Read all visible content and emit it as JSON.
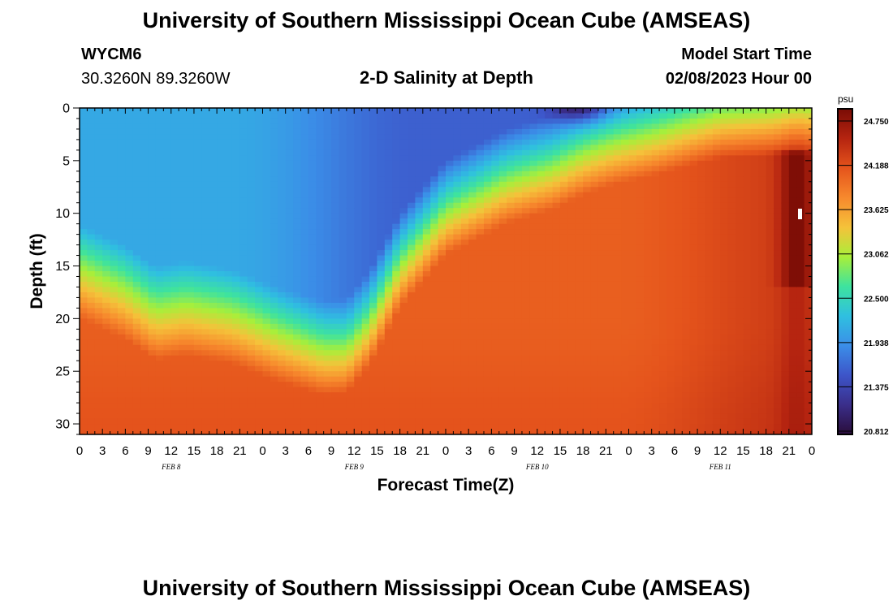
{
  "title": "University of Southern Mississippi Ocean Cube (AMSEAS)",
  "title_repeat": "University of Southern Mississippi Ocean Cube (AMSEAS)",
  "station": {
    "id": "WYCM6",
    "coords": "30.3260N  89.3260W"
  },
  "model_start": {
    "label": "Model Start Time",
    "value": "02/08/2023 Hour 00"
  },
  "chart_data": {
    "type": "heatmap",
    "title": "2-D Salinity at Depth",
    "xlabel": "Forecast Time(Z)",
    "ylabel": "Depth (ft)",
    "xlim_hours": [
      0,
      96
    ],
    "ylim_ft": [
      0,
      31
    ],
    "x_ticks": [
      "0",
      "3",
      "6",
      "9",
      "12",
      "15",
      "18",
      "21",
      "0",
      "3",
      "6",
      "9",
      "12",
      "15",
      "18",
      "21",
      "0",
      "3",
      "6",
      "9",
      "12",
      "15",
      "18",
      "21",
      "0",
      "3",
      "6",
      "9",
      "12",
      "15",
      "18",
      "21",
      "0"
    ],
    "x_tick_hours": [
      0,
      3,
      6,
      9,
      12,
      15,
      18,
      21,
      24,
      27,
      30,
      33,
      36,
      39,
      42,
      45,
      48,
      51,
      54,
      57,
      60,
      63,
      66,
      69,
      72,
      75,
      78,
      81,
      84,
      87,
      90,
      93,
      96
    ],
    "date_labels": [
      {
        "text": "FEB 8",
        "hour": 12
      },
      {
        "text": "FEB 9",
        "hour": 36
      },
      {
        "text": "FEB 10",
        "hour": 60
      },
      {
        "text": "FEB 11",
        "hour": 84
      }
    ],
    "y_ticks": [
      0,
      5,
      10,
      15,
      20,
      25,
      30
    ],
    "y_tick_labels": [
      "0",
      "5",
      "10",
      "15",
      "20",
      "25",
      "30"
    ],
    "colorbar": {
      "unit": "psu",
      "min": 20.812,
      "max": 24.75,
      "labels": [
        "24.750",
        "24.188",
        "23.625",
        "23.062",
        "22.500",
        "21.938",
        "21.375",
        "20.812"
      ],
      "colors": [
        "#2a0d3a",
        "#3a2e8a",
        "#3d55c9",
        "#3b8ee8",
        "#2fc0e0",
        "#3ee39e",
        "#a8ef3a",
        "#f5c23a",
        "#f7892d",
        "#e5541c",
        "#b52410",
        "#7a0c05"
      ]
    },
    "halocline_depth_ft": [
      [
        0,
        15.5
      ],
      [
        6,
        17.5
      ],
      [
        10,
        19.5
      ],
      [
        14,
        19
      ],
      [
        20,
        19.8
      ],
      [
        26,
        21.5
      ],
      [
        32,
        22.8
      ],
      [
        35,
        22.6
      ],
      [
        38,
        20
      ],
      [
        42,
        14.5
      ],
      [
        48,
        9.5
      ],
      [
        56,
        6.5
      ],
      [
        62,
        5.2
      ],
      [
        66,
        3.8
      ],
      [
        70,
        2.8
      ],
      [
        76,
        1.8
      ],
      [
        80,
        1
      ],
      [
        84,
        0.3
      ],
      [
        96,
        0
      ]
    ],
    "features": [
      {
        "desc": "freshest surface water",
        "hour": 66,
        "depth_ft": 0.5,
        "value": 20.9
      },
      {
        "desc": "saltiest water",
        "hour": 94,
        "depth_ft": 11,
        "value": 24.75
      }
    ]
  }
}
